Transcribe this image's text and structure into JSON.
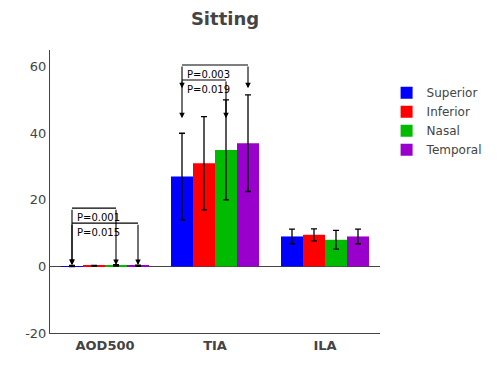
{
  "chart_data": {
    "type": "bar",
    "title": "Sitting",
    "categories": [
      "AOD500",
      "TIA",
      "ILA"
    ],
    "series": [
      {
        "name": "Superior",
        "color": "#0000FF",
        "values": [
          0.12,
          27.0,
          9.0
        ],
        "errors": [
          0.18,
          13.0,
          2.2
        ]
      },
      {
        "name": "Inferior",
        "color": "#FF0000",
        "values": [
          0.18,
          31.0,
          9.5
        ],
        "errors": [
          0.12,
          14.0,
          1.8
        ]
      },
      {
        "name": "Nasal",
        "color": "#00BB00",
        "values": [
          0.28,
          35.0,
          8.0
        ],
        "errors": [
          0.22,
          15.0,
          2.8
        ]
      },
      {
        "name": "Temporal",
        "color": "#9900CC",
        "values": [
          0.22,
          37.0,
          9.0
        ],
        "errors": [
          0.18,
          14.5,
          2.2
        ]
      }
    ],
    "ylim": [
      -20,
      65
    ],
    "yticks": [
      -20,
      0,
      20,
      40,
      60
    ],
    "grid": false,
    "legend": "upper right",
    "annotations": [
      {
        "text": "P=0.001",
        "group": "AOD500",
        "from": "Superior",
        "to": "Nasal",
        "y": 17.5,
        "y_end": 0.4
      },
      {
        "text": "P=0.015",
        "group": "AOD500",
        "from": "Superior",
        "to": "Temporal",
        "y": 13.0,
        "y_end": 0.4
      },
      {
        "text": "P=0.003",
        "group": "TIA",
        "from": "Superior",
        "to": "Temporal",
        "y": 60.5,
        "y_end": 53.5
      },
      {
        "text": "P=0.019",
        "group": "TIA",
        "from": "Superior",
        "to": "Nasal",
        "y": 56.0,
        "y_end": 44.5
      }
    ]
  }
}
